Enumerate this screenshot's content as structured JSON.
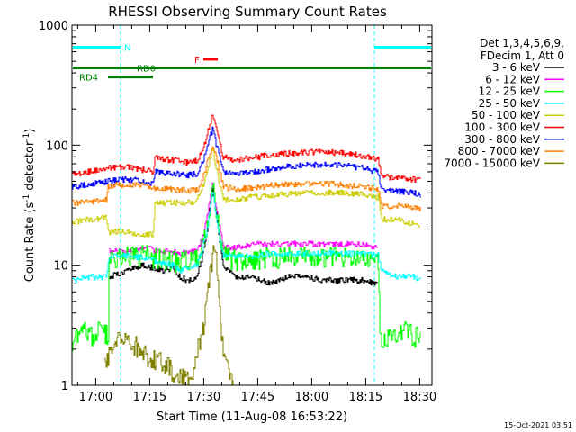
{
  "chart_data": {
    "type": "line",
    "title": "RHESSI Observing Summary Count Rates",
    "xlabel": "Start Time (11-Aug-08 16:53:22)",
    "ylabel": "Count Rate (s^-1 detector^-1)",
    "ylabel_parts": [
      "Count Rate (s",
      "-1",
      " detector",
      "-1",
      ")"
    ],
    "x_unit": "minutes after 16:53:22",
    "xlim": [
      0,
      100
    ],
    "ylim": [
      1,
      1000
    ],
    "yscale": "log",
    "x_ticks": [
      {
        "x": 6.6,
        "label": "17:00"
      },
      {
        "x": 21.6,
        "label": "17:15"
      },
      {
        "x": 36.6,
        "label": "17:30"
      },
      {
        "x": 51.6,
        "label": "17:45"
      },
      {
        "x": 66.6,
        "label": "18:00"
      },
      {
        "x": 81.6,
        "label": "18:15"
      },
      {
        "x": 96.6,
        "label": "18:30"
      }
    ],
    "y_ticks": [
      {
        "y": 1,
        "label": "1"
      },
      {
        "y": 10,
        "label": "10"
      },
      {
        "y": 100,
        "label": "100"
      },
      {
        "y": 1000,
        "label": "1000"
      }
    ],
    "legend_header": [
      "Det 1,3,4,5,6,9,",
      "FDecim 1, Att 0"
    ],
    "legend_position": "right",
    "series": [
      {
        "name": "3 - 6 keV",
        "color": "#000000",
        "x": [
          0,
          10,
          10.3,
          15,
          20,
          25,
          28,
          30,
          32,
          33,
          34.5,
          36,
          37.5,
          39,
          40.5,
          42,
          45,
          50,
          55,
          60,
          65,
          70,
          75,
          80,
          85,
          85.5
        ],
        "y": [
          null,
          null,
          8,
          9,
          10,
          9,
          9.5,
          8,
          7.5,
          7.5,
          8,
          11,
          20,
          45,
          20,
          10,
          8,
          8,
          7,
          8,
          8,
          7.5,
          7.5,
          7.5,
          7,
          null
        ]
      },
      {
        "name": "6 - 12 keV",
        "color": "#ff00ff",
        "x": [
          0,
          10,
          10.3,
          15,
          20,
          25,
          28,
          30,
          34.5,
          36,
          37.5,
          39,
          40.5,
          42,
          45,
          50,
          55,
          60,
          65,
          70,
          75,
          80,
          85,
          85.5
        ],
        "y": [
          null,
          null,
          13,
          13,
          14,
          13,
          13,
          12.5,
          13,
          16,
          25,
          48,
          25,
          14,
          14,
          15,
          15,
          15,
          15,
          15,
          15,
          15,
          14,
          null
        ]
      },
      {
        "name": "12 - 25 keV",
        "color": "#00ff00",
        "x": [
          0,
          2,
          5,
          8,
          10,
          10.3,
          15,
          20,
          25,
          28,
          30,
          34.5,
          36,
          37.5,
          39,
          40.5,
          42,
          45,
          50,
          55,
          60,
          65,
          70,
          75,
          80,
          85,
          85.5,
          88,
          92,
          95,
          97
        ],
        "y": [
          2,
          3,
          2.5,
          3,
          2.5,
          11,
          12,
          12,
          11,
          11,
          10.5,
          11,
          14,
          22,
          45,
          22,
          12,
          11,
          11,
          11.5,
          11.5,
          11.5,
          11.5,
          11.5,
          11.5,
          11,
          2.5,
          2.5,
          3,
          2.5,
          2.5
        ]
      },
      {
        "name": "25 - 50 keV",
        "color": "#00ffff",
        "x": [
          0,
          5,
          9.5,
          10,
          12,
          15,
          20,
          25,
          28,
          30,
          34.5,
          36,
          37.5,
          39,
          40.5,
          42,
          45,
          50,
          55,
          60,
          65,
          70,
          75,
          80,
          85,
          86,
          90,
          95,
          97
        ],
        "y": [
          7.5,
          8,
          8,
          11,
          12,
          12,
          11.5,
          10.5,
          10,
          9,
          10,
          13,
          20,
          42,
          20,
          12,
          12,
          12,
          12.5,
          12.5,
          12.5,
          12.5,
          12.5,
          12.5,
          12,
          9,
          8,
          8,
          7.5
        ]
      },
      {
        "name": "50 - 100 keV",
        "color": "#cccc00",
        "x": [
          0,
          5,
          9.5,
          10,
          14,
          20,
          22.5,
          23,
          28,
          32,
          34.5,
          36,
          37.5,
          39,
          40.5,
          42,
          45,
          50,
          55,
          60,
          65,
          70,
          75,
          80,
          85,
          86,
          90,
          95,
          97
        ],
        "y": [
          23,
          24,
          25,
          19,
          19,
          18,
          18,
          33,
          33,
          33,
          34,
          42,
          60,
          95,
          55,
          35,
          35,
          37,
          38,
          39,
          40,
          40,
          40,
          39,
          37,
          24,
          24,
          22,
          22
        ]
      },
      {
        "name": "100 - 300 keV",
        "color": "#ff0000",
        "x": [
          0,
          5,
          10,
          15,
          20,
          22.5,
          23,
          28,
          32,
          35,
          36.5,
          38,
          39,
          40.5,
          42,
          45,
          50,
          55,
          60,
          65,
          70,
          75,
          80,
          85,
          86,
          90,
          95,
          97
        ],
        "y": [
          57,
          60,
          65,
          66,
          62,
          60,
          78,
          75,
          72,
          75,
          95,
          140,
          180,
          120,
          80,
          75,
          78,
          83,
          85,
          87,
          88,
          86,
          82,
          77,
          55,
          53,
          52,
          50
        ]
      },
      {
        "name": "300 - 800 keV",
        "color": "#0000ff",
        "x": [
          0,
          5,
          10,
          15,
          20,
          22.5,
          23,
          28,
          32,
          35,
          36.5,
          38,
          39,
          40.5,
          42,
          45,
          50,
          55,
          60,
          65,
          70,
          75,
          80,
          85,
          86,
          90,
          95,
          97
        ],
        "y": [
          45,
          47,
          50,
          52,
          50,
          48,
          60,
          58,
          56,
          58,
          75,
          110,
          135,
          90,
          60,
          58,
          60,
          63,
          66,
          68,
          69,
          68,
          65,
          60,
          42,
          41,
          40,
          38
        ]
      },
      {
        "name": "800 - 7000 keV",
        "color": "#ff8000",
        "x": [
          0,
          5,
          9.5,
          10,
          15,
          20,
          22.5,
          23,
          28,
          32,
          35,
          36.5,
          38,
          39,
          40.5,
          42,
          45,
          50,
          55,
          60,
          65,
          70,
          75,
          80,
          85,
          86,
          90,
          95,
          97
        ],
        "y": [
          33,
          34,
          35,
          46,
          47,
          46,
          45,
          44,
          43,
          42,
          43,
          55,
          80,
          100,
          70,
          45,
          43,
          44,
          46,
          47,
          48,
          48,
          47,
          45,
          43,
          31,
          31,
          30,
          29
        ]
      },
      {
        "name": "7000 - 15000 keV",
        "color": "#808000",
        "x": [
          0,
          5,
          9,
          13,
          17,
          20,
          25,
          30,
          33,
          34,
          35,
          36,
          37,
          38,
          39,
          39.5,
          40,
          40.5,
          41,
          42,
          43,
          44,
          45,
          50,
          55,
          60,
          65,
          70,
          75,
          80,
          85
        ],
        "y": [
          null,
          null,
          1.6,
          2.5,
          2.2,
          1.8,
          1.5,
          1.2,
          1.1,
          1.5,
          2,
          2.5,
          4,
          7,
          12,
          14,
          11,
          7,
          4,
          2,
          1.4,
          1.1,
          1,
          null,
          null,
          null,
          null,
          null,
          null,
          null,
          null
        ]
      }
    ],
    "annotations": {
      "night_intervals": [
        [
          -4,
          13.5
        ],
        [
          84,
          104
        ]
      ],
      "segments": [
        {
          "label": "N",
          "color": "#00ffff",
          "x0": -3.5,
          "x1": 13.5,
          "y": 655,
          "label_x": 14.5
        },
        {
          "label": "N",
          "color": "#00ffff",
          "x0": 84,
          "x1": 104,
          "y": 655,
          "label_x": null
        },
        {
          "label": "RD0",
          "color": "#008000",
          "x0": -3.5,
          "x1": 104,
          "y": 440,
          "label_x": 18
        },
        {
          "label": "RD4",
          "color": "#008000",
          "x0": 10,
          "x1": 22.5,
          "y": 370,
          "label_x": 2
        },
        {
          "label": "F",
          "color": "#ff0000",
          "x0": 36.5,
          "x1": 40.5,
          "y": 520,
          "label_x": 34
        }
      ]
    }
  },
  "footer": {
    "timestamp": "15-Oct-2021 03:51"
  }
}
